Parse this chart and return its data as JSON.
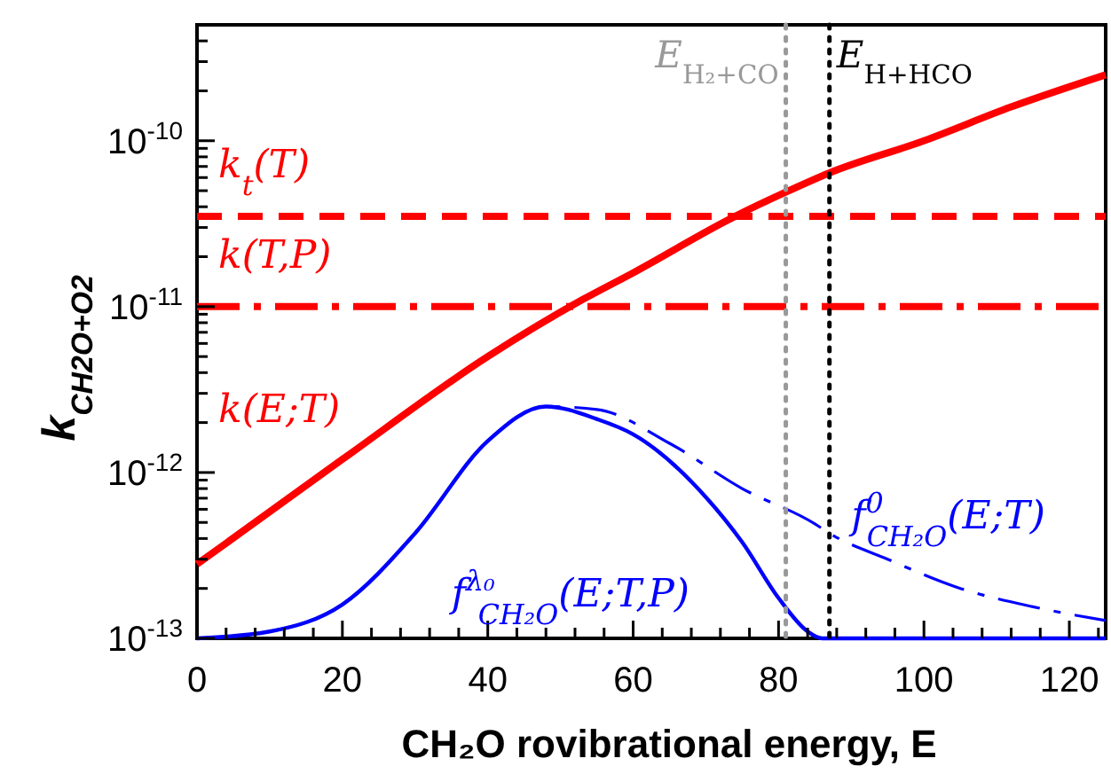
{
  "chart_data": {
    "type": "line",
    "xlabel": "CH₂O rovibrational energy, E",
    "ylabel": "k$_{CH2O+O2}$",
    "log": "y",
    "xlim": [
      0,
      125
    ],
    "xticks": [
      0,
      {
        "value": 4,
        "label": null
      },
      {
        "value": 8,
        "label": null
      },
      {
        "value": 12,
        "label": null
      },
      {
        "value": 16,
        "label": null
      },
      20,
      {
        "value": 24,
        "label": null
      },
      {
        "value": 28,
        "label": null
      },
      {
        "value": 32,
        "label": null
      },
      {
        "value": 36,
        "label": null
      },
      40,
      {
        "value": 44,
        "label": null
      },
      {
        "value": 48,
        "label": null
      },
      {
        "value": 52,
        "label": null
      },
      {
        "value": 56,
        "label": null
      },
      60,
      {
        "value": 64,
        "label": null
      },
      {
        "value": 68,
        "label": null
      },
      {
        "value": 72,
        "label": null
      },
      {
        "value": 76,
        "label": null
      },
      80,
      {
        "value": 84,
        "label": null
      },
      {
        "value": 88,
        "label": null
      },
      {
        "value": 92,
        "label": null
      },
      {
        "value": 96,
        "label": null
      },
      100,
      {
        "value": 104,
        "label": null
      },
      {
        "value": 108,
        "label": null
      },
      {
        "value": 112,
        "label": null
      },
      {
        "value": 116,
        "label": null
      },
      120,
      {
        "value": 124,
        "label": null
      }
    ],
    "ylim": [
      1e-13,
      5e-10
    ],
    "yticks": [
      {
        "value": 1e-13,
        "label": "10$^{-13}$"
      },
      {
        "value": 2e-13,
        "label": null
      },
      {
        "value": 3e-13,
        "label": null
      },
      {
        "value": 4e-13,
        "label": null
      },
      {
        "value": 5e-13,
        "label": null
      },
      {
        "value": 6e-13,
        "label": null
      },
      {
        "value": 7e-13,
        "label": null
      },
      {
        "value": 8e-13,
        "label": null
      },
      {
        "value": 9e-13,
        "label": null
      },
      {
        "value": 1e-12,
        "label": "10$^{-12}$"
      },
      {
        "value": 2e-12,
        "label": null
      },
      {
        "value": 3e-12,
        "label": null
      },
      {
        "value": 4e-12,
        "label": null
      },
      {
        "value": 5e-12,
        "label": null
      },
      {
        "value": 6e-12,
        "label": null
      },
      {
        "value": 7e-12,
        "label": null
      },
      {
        "value": 8e-12,
        "label": null
      },
      {
        "value": 9e-12,
        "label": null
      },
      {
        "value": 1e-11,
        "label": "10$^{-11}$"
      },
      {
        "value": 2e-11,
        "label": null
      },
      {
        "value": 3e-11,
        "label": null
      },
      {
        "value": 4e-11,
        "label": null
      },
      {
        "value": 5e-11,
        "label": null
      },
      {
        "value": 6e-11,
        "label": null
      },
      {
        "value": 7e-11,
        "label": null
      },
      {
        "value": 8e-11,
        "label": null
      },
      {
        "value": 9e-11,
        "label": null
      },
      {
        "value": 1e-10,
        "label": "10$^{-10}$"
      },
      {
        "value": 2e-10,
        "label": null
      },
      {
        "value": 3e-10,
        "label": null
      },
      {
        "value": 4e-10,
        "label": null
      }
    ],
    "grid": false,
    "series": [
      {
        "name": "k(E;T)",
        "color": "#ff0000",
        "line_style": "solid",
        "x": [
          0,
          20,
          40,
          53,
          60,
          74,
          81,
          87,
          100,
          112,
          125
        ],
        "values": [
          2.8e-13,
          1.2e-12,
          5e-12,
          1.1e-11,
          1.6e-11,
          3.5e-11,
          4.9e-11,
          6.4e-11,
          1e-10,
          1.6e-10,
          2.5e-10
        ]
      },
      {
        "name": "k$_{t}$(T)",
        "color": "#ff0000",
        "line_style": "dashed",
        "x": [
          0,
          125
        ],
        "values": [
          3.5e-11,
          3.5e-11
        ]
      },
      {
        "name": "k(T,P)",
        "color": "#ff0000",
        "line_style": "dashdot",
        "x": [
          0,
          125
        ],
        "values": [
          1e-11,
          1e-11
        ]
      },
      {
        "name": "f$^{λ₀}$$_{CH₂O}$(E;T,P)",
        "color": "#0000ff",
        "line_style": "solid",
        "x": [
          0,
          10,
          20,
          30,
          40,
          48,
          55,
          60,
          70,
          75,
          80,
          84,
          86,
          100,
          125
        ],
        "values": [
          1e-13,
          1.1e-13,
          1.6e-13,
          4.3e-13,
          1.55e-12,
          2.5e-12,
          2.1e-12,
          1.7e-12,
          7.1e-13,
          3.8e-13,
          1.75e-13,
          1.1e-13,
          1e-13,
          1e-13,
          1e-13
        ]
      },
      {
        "name": "f$^{0}$$_{CH₂O}$(E;T)",
        "color": "#0000ff",
        "line_style": "dashdot",
        "x": [
          0,
          10,
          20,
          30,
          40,
          48,
          55,
          65,
          75,
          85,
          87,
          95,
          105,
          115,
          125
        ],
        "values": [
          1e-13,
          1.1e-13,
          1.6e-13,
          4.3e-13,
          1.55e-12,
          2.5e-12,
          2.4e-12,
          1.5e-12,
          8e-13,
          4.9e-13,
          4.3e-13,
          3e-13,
          2e-13,
          1.55e-13,
          1.28e-13
        ]
      }
    ],
    "ref_lines": [
      {
        "axis": "x",
        "value": 81,
        "label": "E$_{H₂+CO}$",
        "color": "#999999",
        "line_style": "dotted"
      },
      {
        "axis": "x",
        "value": 87,
        "label": "E$_{H+HCO}$",
        "color": "#000000",
        "line_style": "dotted"
      }
    ]
  }
}
